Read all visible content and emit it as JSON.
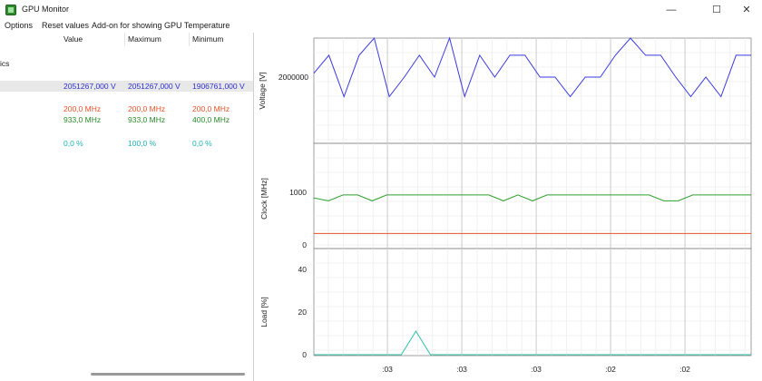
{
  "window": {
    "title": "GPU Monitor",
    "minimize": "—",
    "maximize": "☐",
    "close": "✕"
  },
  "menu": [
    "Options",
    "Reset values",
    "Add-on for showing GPU Temperature"
  ],
  "table": {
    "columns": [
      "Value",
      "Maximum",
      "Minimum"
    ],
    "section_label": "ics",
    "rows": [
      {
        "value": "2051267,000 V",
        "maximum": "2051267,000 V",
        "minimum": "1906761,000 V",
        "color": "#2f2fd0",
        "selected": true
      },
      {
        "value": "200,0 MHz",
        "maximum": "200,0 MHz",
        "minimum": "200,0 MHz",
        "color": "#e8532a",
        "selected": false
      },
      {
        "value": "933,0 MHz",
        "maximum": "933,0 MHz",
        "minimum": "400,0 MHz",
        "color": "#2a8a2a",
        "selected": false
      },
      {
        "value": "0,0 %",
        "maximum": "100,0 %",
        "minimum": "0,0 %",
        "color": "#1fb3b3",
        "selected": false
      }
    ]
  },
  "charts": {
    "voltage": {
      "ylabel": "Voltage [V]",
      "tick_label": "2000000",
      "color": "#3a3ae0",
      "values": [
        0.55,
        0.78,
        0.25,
        0.78,
        1.0,
        0.25,
        0.5,
        0.78,
        0.5,
        1.0,
        0.25,
        0.78,
        0.5,
        0.78,
        0.78,
        0.5,
        0.5,
        0.25,
        0.5,
        0.5,
        0.78,
        1.0,
        0.78,
        0.78,
        0.5,
        0.25,
        0.5,
        0.25,
        0.78,
        0.78
      ]
    },
    "clock": {
      "ylabel": "Clock [MHz]",
      "ticks": [
        "1000",
        "0"
      ],
      "line_color": "#2fa02f",
      "mem_color": "#e8532a",
      "core_mhz": [
        875,
        820,
        933,
        933,
        820,
        933,
        933,
        933,
        933,
        933,
        933,
        933,
        933,
        820,
        933,
        820,
        933,
        933,
        933,
        933,
        933,
        933,
        933,
        933,
        820,
        820,
        933,
        933,
        933,
        933,
        933
      ],
      "mem_mhz": 200
    },
    "load": {
      "ylabel": "Load [%]",
      "ticks": [
        "40",
        "20",
        "0"
      ],
      "color": "#2fc0a6",
      "values": [
        0,
        0,
        0,
        0,
        0,
        0,
        0,
        11,
        0,
        0,
        0,
        0,
        0,
        0,
        0,
        0,
        0,
        0,
        0,
        0,
        0,
        0,
        0,
        0,
        0,
        0,
        0,
        0,
        0,
        0,
        0
      ],
      "y_max": 48
    },
    "time_labels": [
      ":03",
      ":03",
      ":03",
      ":02",
      ":02"
    ]
  }
}
